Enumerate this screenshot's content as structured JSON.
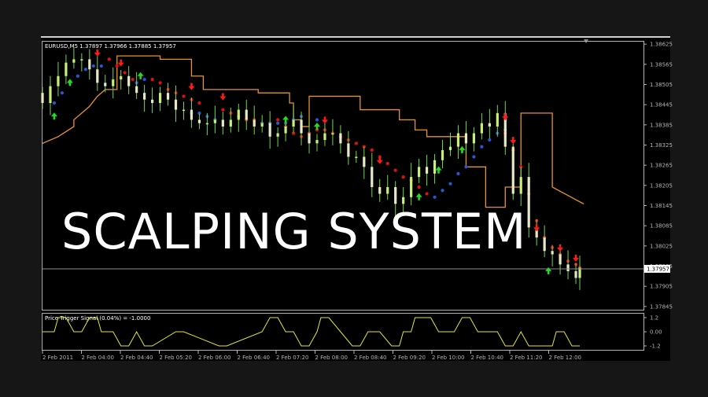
{
  "window": {
    "symbol_header": "EURUSD,M5  1.37897 1.37966 1.37885 1.37957",
    "banner": "SCALPING SYSTEM",
    "indicator_header": "Price Trigger Signal (0.04%) =  -1.0000",
    "current_price_label": "1.37957"
  },
  "colors": {
    "background": "#000000",
    "frame": "#161616",
    "axis": "#b4b4b4",
    "bull_candle": "#c8f078",
    "bear_candle": "#e8e8c8",
    "wick": "#6fd84a",
    "red_dots": "#e01010",
    "blue_dots": "#2858d8",
    "orange_line": "#e8922a",
    "signal_line": "#e6e62a",
    "price_line": "#8c8c8c",
    "up_arrow": "#22dd22",
    "down_arrow": "#ff1a1a"
  },
  "chart_data": [
    {
      "type": "line",
      "title": "EURUSD,M5",
      "x_labels": [
        "2 Feb 2011",
        "2 Feb 04:00",
        "2 Feb 04:40",
        "2 Feb 05:20",
        "2 Feb 06:00",
        "2 Feb 06:40",
        "2 Feb 07:20",
        "2 Feb 08:00",
        "2 Feb 08:40",
        "2 Feb 09:20",
        "2 Feb 10:00",
        "2 Feb 10:40",
        "2 Feb 11:20",
        "2 Feb 12:00"
      ],
      "y_tick_labels": [
        "1.38625",
        "1.38565",
        "1.38505",
        "1.38445",
        "1.38385",
        "1.38325",
        "1.38265",
        "1.38205",
        "1.38145",
        "1.38085",
        "1.38025",
        "1.37965",
        "1.37905",
        "1.37845"
      ],
      "ylim": [
        1.3784,
        1.3863
      ],
      "current_price": 1.37957,
      "series": [
        {
          "name": "",
          "style": "step-line",
          "x": [
            0,
            4,
            8,
            8,
            10,
            12,
            14,
            16,
            18,
            19,
            19,
            30,
            30,
            38,
            38,
            41,
            41,
            55,
            55,
            63,
            63,
            64,
            64,
            66,
            66,
            68,
            68,
            81,
            81,
            91,
            91,
            95,
            95,
            98,
            98,
            99,
            99,
            108,
            108,
            113,
            113,
            118,
            118,
            120,
            120,
            122,
            122,
            130,
            130,
            138
          ],
          "y": [
            1.3833,
            1.3835,
            1.3838,
            1.384,
            1.3842,
            1.3844,
            1.3847,
            1.3849,
            1.3849,
            1.3849,
            1.3859,
            1.3859,
            1.3858,
            1.3858,
            1.3853,
            1.3853,
            1.3849,
            1.3849,
            1.3848,
            1.3848,
            1.3845,
            1.3845,
            1.384,
            1.384,
            1.3838,
            1.3838,
            1.3847,
            1.3847,
            1.3843,
            1.3843,
            1.384,
            1.384,
            1.3837,
            1.3837,
            1.3835,
            1.3835,
            1.3835,
            1.3835,
            1.3826,
            1.3826,
            1.3814,
            1.3814,
            1.382,
            1.382,
            1.382,
            1.382,
            1.3842,
            1.3842,
            1.382,
            1.3815
          ]
        },
        {
          "name": "",
          "style": "dots-red",
          "x": [
            17,
            19,
            21,
            23,
            28,
            30,
            32,
            34,
            36,
            38,
            40,
            46,
            48,
            50,
            52,
            54,
            56,
            58,
            60,
            62,
            64,
            66,
            68,
            70,
            72,
            74,
            76,
            78,
            80,
            82,
            84,
            86,
            88,
            90,
            92,
            94,
            96,
            98,
            118,
            120,
            122,
            124,
            126,
            128,
            130,
            132,
            134,
            136,
            137
          ],
          "y": [
            1.3858,
            1.3856,
            1.3854,
            1.3852,
            1.3852,
            1.3851,
            1.3849,
            1.3848,
            1.3847,
            1.3846,
            1.3845,
            1.3843,
            1.3842,
            1.3841,
            1.384,
            1.384,
            1.3839,
            1.3839,
            1.384,
            1.3838,
            1.3836,
            1.3835,
            1.3836,
            1.3837,
            1.3837,
            1.3836,
            1.3835,
            1.3834,
            1.3833,
            1.3832,
            1.3831,
            1.3829,
            1.3827,
            1.3825,
            1.3823,
            1.3822,
            1.382,
            1.3818,
            1.3836,
            1.3831,
            1.3826,
            1.3818,
            1.381,
            1.3805,
            1.3802,
            1.38,
            1.3798,
            1.3797,
            1.3796
          ]
        },
        {
          "name": "",
          "style": "dots-blue",
          "x": [
            3,
            5,
            7,
            9,
            11,
            13,
            15,
            24,
            26,
            38,
            40,
            42,
            44,
            56,
            58,
            60,
            62,
            64,
            66,
            70,
            100,
            102,
            104,
            106,
            108,
            110,
            112,
            114,
            116,
            118
          ],
          "y": [
            1.3845,
            1.3848,
            1.3851,
            1.3853,
            1.3855,
            1.3856,
            1.3856,
            1.3851,
            1.3852,
            1.3842,
            1.3842,
            1.3841,
            1.384,
            1.3839,
            1.3839,
            1.3839,
            1.3839,
            1.384,
            1.3841,
            1.384,
            1.3817,
            1.3819,
            1.3821,
            1.3824,
            1.3826,
            1.3829,
            1.3832,
            1.3834,
            1.3836,
            1.3837
          ]
        },
        {
          "name": "",
          "style": "candles",
          "x": [
            0,
            2,
            4,
            6,
            8,
            10,
            12,
            14,
            16,
            18,
            20,
            22,
            24,
            26,
            28,
            30,
            32,
            34,
            36,
            38,
            40,
            42,
            44,
            46,
            48,
            50,
            52,
            54,
            56,
            58,
            60,
            62,
            64,
            66,
            68,
            70,
            72,
            74,
            76,
            78,
            80,
            82,
            84,
            86,
            88,
            90,
            92,
            94,
            96,
            98,
            100,
            102,
            104,
            106,
            108,
            110,
            112,
            114,
            116,
            118,
            120,
            122,
            124,
            126,
            128,
            130,
            132,
            134,
            136,
            137
          ],
          "y": [
            1.3845,
            1.385,
            1.3853,
            1.3857,
            1.3858,
            1.3858,
            1.3855,
            1.3851,
            1.385,
            1.3852,
            1.3853,
            1.385,
            1.3848,
            1.3846,
            1.3845,
            1.3848,
            1.3846,
            1.3843,
            1.3843,
            1.384,
            1.3839,
            1.3839,
            1.384,
            1.3838,
            1.384,
            1.3843,
            1.384,
            1.3838,
            1.3839,
            1.3835,
            1.3836,
            1.3838,
            1.384,
            1.3836,
            1.3833,
            1.3834,
            1.3836,
            1.3836,
            1.3833,
            1.3829,
            1.3829,
            1.3826,
            1.382,
            1.3818,
            1.382,
            1.3815,
            1.3817,
            1.3823,
            1.3826,
            1.3824,
            1.3828,
            1.3831,
            1.3832,
            1.3836,
            1.3833,
            1.3836,
            1.3839,
            1.3838,
            1.3842,
            1.3832,
            1.3818,
            1.3823,
            1.3808,
            1.3805,
            1.3801,
            1.38,
            1.3797,
            1.3795,
            1.3793,
            1.3796
          ]
        },
        {
          "name": "",
          "style": "arrows-up",
          "x": [
            3,
            7,
            25,
            62,
            70,
            96,
            101,
            107,
            129
          ],
          "y": [
            1.3841,
            1.3851,
            1.3853,
            1.384,
            1.3838,
            1.3817,
            1.3825,
            1.3831,
            1.3795
          ]
        },
        {
          "name": "",
          "style": "arrows-down",
          "x": [
            14,
            20,
            38,
            46,
            72,
            86,
            118,
            120,
            126,
            132,
            136
          ],
          "y": [
            1.386,
            1.3857,
            1.385,
            1.3847,
            1.384,
            1.3828,
            1.3841,
            1.3834,
            1.3808,
            1.3802,
            1.3799
          ]
        }
      ]
    },
    {
      "type": "line",
      "title": "Price Trigger Signal (0.04%)",
      "y_tick_labels": [
        "1.2",
        "0.00",
        "-1.2"
      ],
      "ylim": [
        -1.4,
        1.4
      ],
      "series": [
        {
          "name": "",
          "x": [
            0,
            3,
            4,
            6,
            8,
            10,
            12,
            14,
            15,
            16,
            18,
            20,
            22,
            24,
            26,
            28,
            34,
            36,
            45,
            47,
            56,
            58,
            60,
            62,
            64,
            66,
            68,
            70,
            71,
            73,
            76,
            79,
            81,
            83,
            86,
            89,
            91,
            92,
            94,
            95,
            99,
            101,
            105,
            107,
            109,
            111,
            113,
            116,
            118,
            120,
            122,
            124,
            126,
            130,
            131,
            133,
            135,
            137
          ],
          "y": [
            0,
            0,
            1.2,
            1.2,
            0,
            0,
            1.2,
            1.2,
            0,
            0,
            0,
            -1.2,
            -1.2,
            0,
            -1.2,
            -1.2,
            0,
            0,
            -1.2,
            -1.2,
            0,
            1.2,
            1.2,
            0,
            0,
            -1.2,
            -1.2,
            0,
            1.2,
            1.2,
            0,
            -1.2,
            -1.2,
            0,
            0,
            -1.2,
            -1.2,
            0,
            0,
            1.2,
            1.2,
            0,
            0,
            1.2,
            1.2,
            0,
            0,
            0,
            -1.2,
            -1.2,
            0,
            -1.2,
            -1.2,
            -1.2,
            0,
            0,
            -1.2,
            -1.2
          ]
        }
      ]
    }
  ]
}
